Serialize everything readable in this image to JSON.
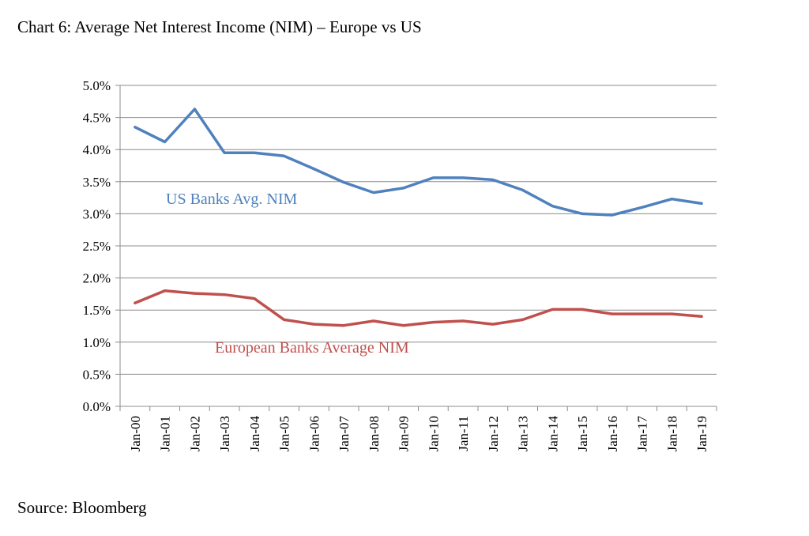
{
  "title": "Chart 6: Average Net Interest Income (NIM) – Europe vs US",
  "source": "Source: Bloomberg",
  "colors": {
    "us": "#4f81bd",
    "europe": "#c0504d",
    "grid": "#8c8c8c",
    "axis": "#8c8c8c"
  },
  "chart_data": {
    "type": "line",
    "categories": [
      "Jan-00",
      "Jan-01",
      "Jan-02",
      "Jan-03",
      "Jan-04",
      "Jan-05",
      "Jan-06",
      "Jan-07",
      "Jan-08",
      "Jan-09",
      "Jan-10",
      "Jan-11",
      "Jan-12",
      "Jan-13",
      "Jan-14",
      "Jan-15",
      "Jan-16",
      "Jan-17",
      "Jan-18",
      "Jan-19"
    ],
    "yticks": [
      "0.0%",
      "0.5%",
      "1.0%",
      "1.5%",
      "2.0%",
      "2.5%",
      "3.0%",
      "3.5%",
      "4.0%",
      "4.5%",
      "5.0%"
    ],
    "ylim": [
      0,
      5
    ],
    "grid": true,
    "series": [
      {
        "name": "US Banks Avg. NIM",
        "color": "#4f81bd",
        "values": [
          4.35,
          4.12,
          4.63,
          3.95,
          3.95,
          3.9,
          3.7,
          3.49,
          3.33,
          3.4,
          3.56,
          3.56,
          3.53,
          3.37,
          3.12,
          3.0,
          2.98,
          3.1,
          3.23,
          3.16
        ]
      },
      {
        "name": "European Banks Average NIM",
        "color": "#c0504d",
        "values": [
          1.61,
          1.8,
          1.76,
          1.74,
          1.68,
          1.35,
          1.28,
          1.26,
          1.33,
          1.26,
          1.31,
          1.33,
          1.28,
          1.35,
          1.51,
          1.51,
          1.44,
          1.44,
          1.44,
          1.4
        ]
      }
    ]
  }
}
